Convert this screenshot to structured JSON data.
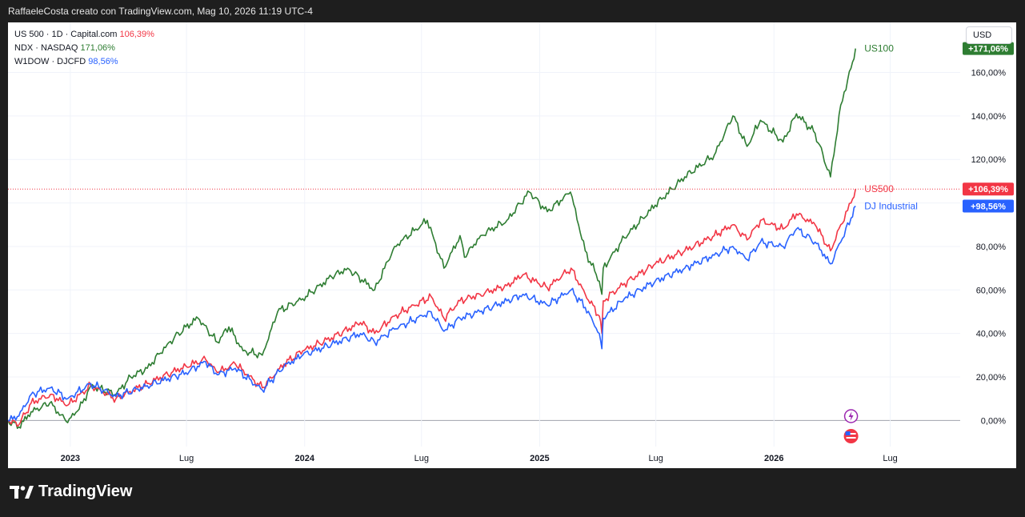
{
  "header": {
    "text": "RaffaeleCosta creato con TradingView.com, Mag 10, 2026 11:19 UTC-4"
  },
  "legend": [
    {
      "name": "US 500 · 1D · Capital.com",
      "value": "106,39%",
      "color": "#f23645"
    },
    {
      "name": "NDX · NASDAQ",
      "value": "171,06%",
      "color": "#2e7d32"
    },
    {
      "name": "W1DOW · DJCFD",
      "value": "98,56%",
      "color": "#2962ff"
    }
  ],
  "currency_button": "USD",
  "footer": {
    "brand": "TradingView"
  },
  "chart_data": {
    "type": "line",
    "x_unit": "date",
    "y_unit": "percent change",
    "ylim": [
      -12,
      183
    ],
    "xlim": [
      "2022-09-26",
      "2026-10-18"
    ],
    "y_ticks": [
      {
        "value": 0,
        "label": "0,00%"
      },
      {
        "value": 20,
        "label": "20,00%"
      },
      {
        "value": 40,
        "label": "40,00%"
      },
      {
        "value": 60,
        "label": "60,00%"
      },
      {
        "value": 80,
        "label": "80,00%"
      },
      {
        "value": 100,
        "label": ""
      },
      {
        "value": 120,
        "label": "120,00%"
      },
      {
        "value": 140,
        "label": "140,00%"
      },
      {
        "value": 160,
        "label": "160,00%"
      }
    ],
    "x_ticks": [
      {
        "date": "2023-01-01",
        "label": "2023",
        "bold": true
      },
      {
        "date": "2023-07-01",
        "label": "Lug",
        "bold": false
      },
      {
        "date": "2024-01-01",
        "label": "2024",
        "bold": true
      },
      {
        "date": "2024-07-01",
        "label": "Lug",
        "bold": false
      },
      {
        "date": "2025-01-01",
        "label": "2025",
        "bold": true
      },
      {
        "date": "2025-07-01",
        "label": "Lug",
        "bold": false
      },
      {
        "date": "2026-01-01",
        "label": "2026",
        "bold": true
      },
      {
        "date": "2026-07-01",
        "label": "Lug",
        "bold": false
      }
    ],
    "grid": true,
    "series": [
      {
        "name": "US100",
        "color": "#2e7d32",
        "badge": "+171,06%",
        "points": [
          [
            "2022-09-26",
            0
          ],
          [
            "2022-10-13",
            -3
          ],
          [
            "2022-11-01",
            4
          ],
          [
            "2022-11-30",
            8
          ],
          [
            "2022-12-28",
            -1
          ],
          [
            "2023-01-20",
            8
          ],
          [
            "2023-02-02",
            16
          ],
          [
            "2023-03-13",
            12
          ],
          [
            "2023-04-05",
            20
          ],
          [
            "2023-05-01",
            24
          ],
          [
            "2023-06-01",
            35
          ],
          [
            "2023-06-30",
            43
          ],
          [
            "2023-07-19",
            47
          ],
          [
            "2023-08-18",
            36
          ],
          [
            "2023-09-05",
            43
          ],
          [
            "2023-09-27",
            32
          ],
          [
            "2023-10-27",
            30
          ],
          [
            "2023-11-20",
            50
          ],
          [
            "2023-12-29",
            56
          ],
          [
            "2024-02-12",
            66
          ],
          [
            "2024-03-08",
            70
          ],
          [
            "2024-04-19",
            60
          ],
          [
            "2024-05-20",
            80
          ],
          [
            "2024-07-10",
            92
          ],
          [
            "2024-08-05",
            70
          ],
          [
            "2024-08-30",
            85
          ],
          [
            "2024-09-06",
            75
          ],
          [
            "2024-10-01",
            85
          ],
          [
            "2024-11-11",
            92
          ],
          [
            "2024-12-16",
            105
          ],
          [
            "2025-01-13",
            96
          ],
          [
            "2025-02-18",
            105
          ],
          [
            "2025-03-13",
            78
          ],
          [
            "2025-04-04",
            64
          ],
          [
            "2025-04-08",
            58
          ],
          [
            "2025-04-10",
            70
          ],
          [
            "2025-05-13",
            84
          ],
          [
            "2025-06-30",
            99
          ],
          [
            "2025-08-15",
            112
          ],
          [
            "2025-09-30",
            122
          ],
          [
            "2025-10-29",
            140
          ],
          [
            "2025-11-20",
            126
          ],
          [
            "2025-12-11",
            138
          ],
          [
            "2026-01-15",
            128
          ],
          [
            "2026-02-05",
            141
          ],
          [
            "2026-03-06",
            132
          ],
          [
            "2026-03-30",
            112
          ],
          [
            "2026-04-15",
            145
          ],
          [
            "2026-05-01",
            162
          ],
          [
            "2026-05-08",
            171
          ]
        ]
      },
      {
        "name": "US500",
        "color": "#f23645",
        "badge": "+106,39%",
        "points": [
          [
            "2022-09-26",
            0
          ],
          [
            "2022-10-13",
            -2
          ],
          [
            "2022-11-01",
            8
          ],
          [
            "2022-12-01",
            12
          ],
          [
            "2022-12-28",
            7
          ],
          [
            "2023-02-02",
            16
          ],
          [
            "2023-03-13",
            10
          ],
          [
            "2023-05-01",
            17
          ],
          [
            "2023-06-30",
            25
          ],
          [
            "2023-07-31",
            28
          ],
          [
            "2023-08-18",
            22
          ],
          [
            "2023-09-15",
            26
          ],
          [
            "2023-10-27",
            15
          ],
          [
            "2023-11-30",
            26
          ],
          [
            "2023-12-29",
            32
          ],
          [
            "2024-02-12",
            38
          ],
          [
            "2024-03-28",
            45
          ],
          [
            "2024-04-19",
            40
          ],
          [
            "2024-05-20",
            48
          ],
          [
            "2024-07-16",
            57
          ],
          [
            "2024-08-05",
            47
          ],
          [
            "2024-08-30",
            55
          ],
          [
            "2024-09-30",
            58
          ],
          [
            "2024-11-11",
            62
          ],
          [
            "2024-12-06",
            67
          ],
          [
            "2025-01-13",
            61
          ],
          [
            "2025-02-19",
            70
          ],
          [
            "2025-03-13",
            58
          ],
          [
            "2025-04-04",
            48
          ],
          [
            "2025-04-08",
            40
          ],
          [
            "2025-04-10",
            55
          ],
          [
            "2025-05-13",
            63
          ],
          [
            "2025-06-30",
            72
          ],
          [
            "2025-08-15",
            78
          ],
          [
            "2025-09-30",
            85
          ],
          [
            "2025-10-29",
            90
          ],
          [
            "2025-11-20",
            83
          ],
          [
            "2025-12-11",
            92
          ],
          [
            "2026-01-15",
            88
          ],
          [
            "2026-02-05",
            95
          ],
          [
            "2026-03-06",
            90
          ],
          [
            "2026-03-30",
            78
          ],
          [
            "2026-04-15",
            90
          ],
          [
            "2026-05-01",
            100
          ],
          [
            "2026-05-08",
            106.4
          ]
        ]
      },
      {
        "name": "DJ Industrial",
        "color": "#2962ff",
        "badge": "+98,56%",
        "points": [
          [
            "2022-09-26",
            0
          ],
          [
            "2022-10-13",
            2
          ],
          [
            "2022-11-01",
            12
          ],
          [
            "2022-12-01",
            15
          ],
          [
            "2022-12-28",
            10
          ],
          [
            "2023-02-02",
            17
          ],
          [
            "2023-03-13",
            11
          ],
          [
            "2023-05-01",
            16
          ],
          [
            "2023-06-30",
            22
          ],
          [
            "2023-07-31",
            27
          ],
          [
            "2023-08-18",
            21
          ],
          [
            "2023-09-15",
            24
          ],
          [
            "2023-10-27",
            14
          ],
          [
            "2023-11-30",
            25
          ],
          [
            "2023-12-29",
            30
          ],
          [
            "2024-02-12",
            35
          ],
          [
            "2024-03-28",
            40
          ],
          [
            "2024-04-19",
            36
          ],
          [
            "2024-05-20",
            42
          ],
          [
            "2024-07-16",
            50
          ],
          [
            "2024-08-05",
            41
          ],
          [
            "2024-08-30",
            47
          ],
          [
            "2024-09-30",
            50
          ],
          [
            "2024-11-11",
            55
          ],
          [
            "2024-12-06",
            58
          ],
          [
            "2025-01-13",
            53
          ],
          [
            "2025-02-19",
            60
          ],
          [
            "2025-03-13",
            52
          ],
          [
            "2025-04-04",
            40
          ],
          [
            "2025-04-08",
            33
          ],
          [
            "2025-04-10",
            47
          ],
          [
            "2025-05-13",
            56
          ],
          [
            "2025-06-30",
            64
          ],
          [
            "2025-08-15",
            70
          ],
          [
            "2025-09-30",
            76
          ],
          [
            "2025-10-29",
            80
          ],
          [
            "2025-11-20",
            74
          ],
          [
            "2025-12-11",
            82
          ],
          [
            "2026-01-15",
            80
          ],
          [
            "2026-02-05",
            88
          ],
          [
            "2026-03-06",
            82
          ],
          [
            "2026-03-30",
            72
          ],
          [
            "2026-04-15",
            82
          ],
          [
            "2026-05-01",
            93
          ],
          [
            "2026-05-08",
            98.56
          ]
        ]
      }
    ]
  }
}
